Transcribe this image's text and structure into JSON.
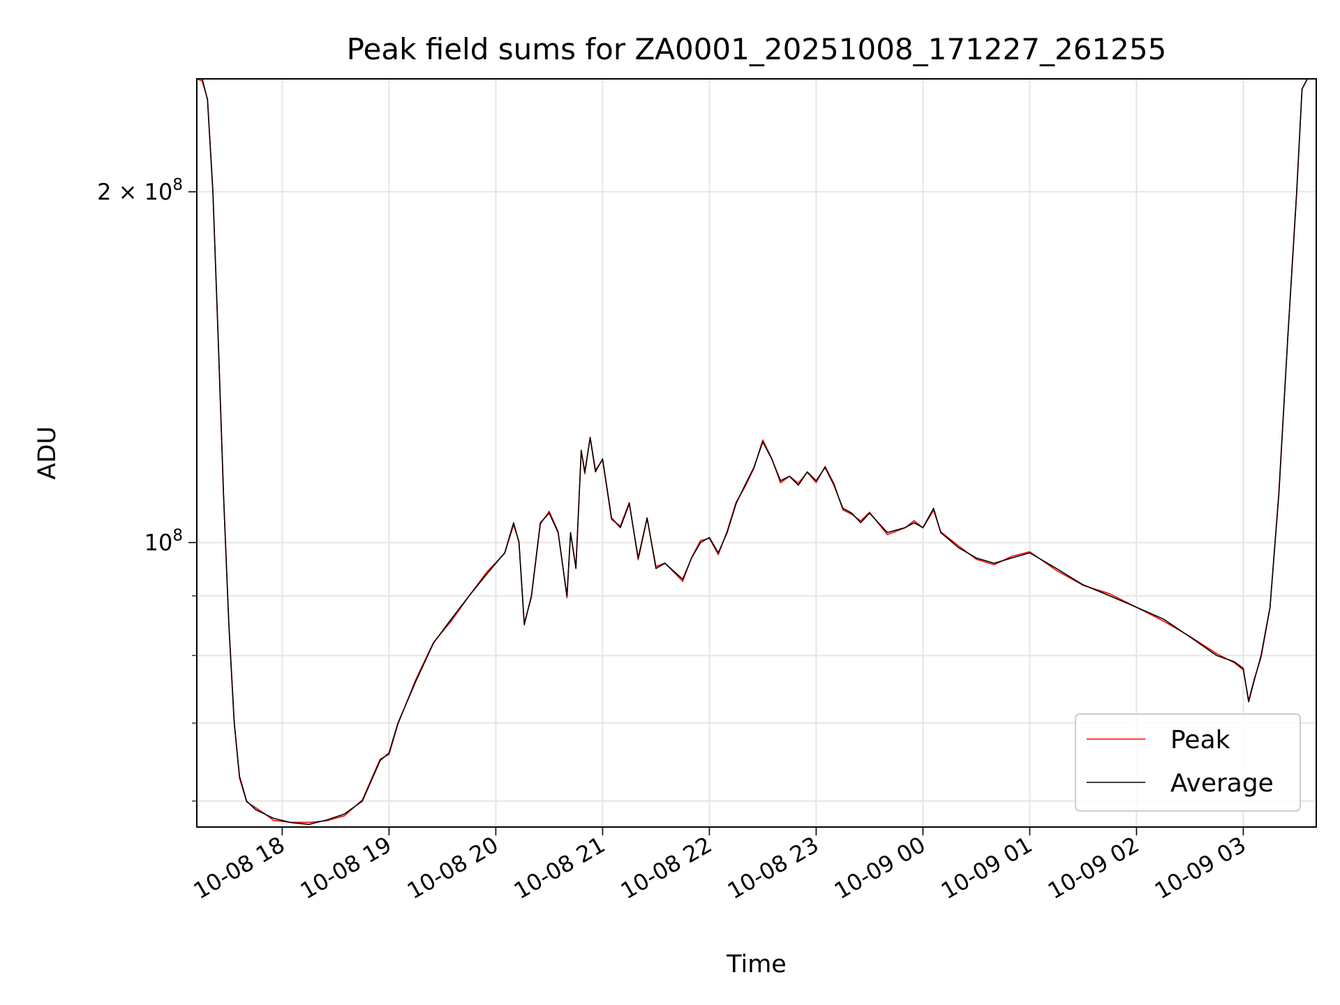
{
  "chart_data": {
    "type": "line",
    "title": "Peak field sums for ZA0001_20251008_171227_261255",
    "xlabel": "Time",
    "ylabel": "ADU",
    "yscale": "log",
    "ylim": [
      57000000,
      250000000
    ],
    "xlim": [
      "2025-10-08 17:12",
      "2025-10-09 03:41"
    ],
    "grid": true,
    "legend": "bottom-right",
    "x_ticks": [
      {
        "t": "2025-10-08 18:00",
        "label": "10-08 18"
      },
      {
        "t": "2025-10-08 19:00",
        "label": "10-08 19"
      },
      {
        "t": "2025-10-08 20:00",
        "label": "10-08 20"
      },
      {
        "t": "2025-10-08 21:00",
        "label": "10-08 21"
      },
      {
        "t": "2025-10-08 22:00",
        "label": "10-08 22"
      },
      {
        "t": "2025-10-08 23:00",
        "label": "10-08 23"
      },
      {
        "t": "2025-10-09 00:00",
        "label": "10-09 00"
      },
      {
        "t": "2025-10-09 01:00",
        "label": "10-09 01"
      },
      {
        "t": "2025-10-09 02:00",
        "label": "10-09 02"
      },
      {
        "t": "2025-10-09 03:00",
        "label": "10-09 03"
      }
    ],
    "y_major_ticks": [
      {
        "v": 100000000,
        "base": "10",
        "exp": "8"
      },
      {
        "v": 200000000,
        "base": "2 × 10",
        "exp": "8"
      }
    ],
    "y_minor_ticks": [
      60000000,
      70000000,
      80000000,
      90000000
    ],
    "series": [
      {
        "name": "Peak",
        "color": "#ff0000"
      },
      {
        "name": "Average",
        "color": "#000000"
      }
    ],
    "x": [
      "2025-10-08 17:12",
      "2025-10-08 17:15",
      "2025-10-08 17:18",
      "2025-10-08 17:21",
      "2025-10-08 17:24",
      "2025-10-08 17:27",
      "2025-10-08 17:30",
      "2025-10-08 17:33",
      "2025-10-08 17:36",
      "2025-10-08 17:40",
      "2025-10-08 17:45",
      "2025-10-08 17:50",
      "2025-10-08 17:55",
      "2025-10-08 18:05",
      "2025-10-08 18:15",
      "2025-10-08 18:25",
      "2025-10-08 18:35",
      "2025-10-08 18:45",
      "2025-10-08 18:55",
      "2025-10-08 19:00",
      "2025-10-08 19:05",
      "2025-10-08 19:15",
      "2025-10-08 19:25",
      "2025-10-08 19:35",
      "2025-10-08 19:45",
      "2025-10-08 19:55",
      "2025-10-08 20:05",
      "2025-10-08 20:10",
      "2025-10-08 20:13",
      "2025-10-08 20:16",
      "2025-10-08 20:20",
      "2025-10-08 20:25",
      "2025-10-08 20:30",
      "2025-10-08 20:35",
      "2025-10-08 20:40",
      "2025-10-08 20:42",
      "2025-10-08 20:45",
      "2025-10-08 20:48",
      "2025-10-08 20:50",
      "2025-10-08 20:53",
      "2025-10-08 20:56",
      "2025-10-08 21:00",
      "2025-10-08 21:05",
      "2025-10-08 21:10",
      "2025-10-08 21:15",
      "2025-10-08 21:20",
      "2025-10-08 21:25",
      "2025-10-08 21:30",
      "2025-10-08 21:35",
      "2025-10-08 21:45",
      "2025-10-08 21:50",
      "2025-10-08 21:55",
      "2025-10-08 22:00",
      "2025-10-08 22:05",
      "2025-10-08 22:10",
      "2025-10-08 22:15",
      "2025-10-08 22:20",
      "2025-10-08 22:25",
      "2025-10-08 22:30",
      "2025-10-08 22:35",
      "2025-10-08 22:40",
      "2025-10-08 22:45",
      "2025-10-08 22:50",
      "2025-10-08 22:55",
      "2025-10-08 23:00",
      "2025-10-08 23:05",
      "2025-10-08 23:10",
      "2025-10-08 23:15",
      "2025-10-08 23:20",
      "2025-10-08 23:25",
      "2025-10-08 23:30",
      "2025-10-08 23:40",
      "2025-10-08 23:50",
      "2025-10-08 23:55",
      "2025-10-09 00:00",
      "2025-10-09 00:06",
      "2025-10-09 00:10",
      "2025-10-09 00:20",
      "2025-10-09 00:30",
      "2025-10-09 00:40",
      "2025-10-09 00:50",
      "2025-10-09 01:00",
      "2025-10-09 01:15",
      "2025-10-09 01:30",
      "2025-10-09 01:45",
      "2025-10-09 02:00",
      "2025-10-09 02:15",
      "2025-10-09 02:30",
      "2025-10-09 02:45",
      "2025-10-09 02:55",
      "2025-10-09 03:00",
      "2025-10-09 03:03",
      "2025-10-09 03:06",
      "2025-10-09 03:10",
      "2025-10-09 03:15",
      "2025-10-09 03:20",
      "2025-10-09 03:25",
      "2025-10-09 03:30",
      "2025-10-09 03:33",
      "2025-10-09 03:36",
      "2025-10-09 03:41"
    ],
    "values": [
      250000000,
      250000000,
      240000000,
      200000000,
      150000000,
      110000000,
      85000000,
      70000000,
      63000000,
      60000000,
      59000000,
      58500000,
      58000000,
      57500000,
      57300000,
      57800000,
      58500000,
      60000000,
      65000000,
      66000000,
      70000000,
      76000000,
      82000000,
      86000000,
      90000000,
      94000000,
      98000000,
      104000000,
      100000000,
      85000000,
      90000000,
      104000000,
      106000000,
      102000000,
      90000000,
      102000000,
      95000000,
      120000000,
      115000000,
      123000000,
      115000000,
      118000000,
      105000000,
      103000000,
      108000000,
      97000000,
      105000000,
      95000000,
      96000000,
      93000000,
      97000000,
      100000000,
      101000000,
      98000000,
      102000000,
      108000000,
      112000000,
      116000000,
      122000000,
      118000000,
      113000000,
      114000000,
      112000000,
      115000000,
      113000000,
      116000000,
      112000000,
      107000000,
      106000000,
      104000000,
      106000000,
      102000000,
      103000000,
      104000000,
      103000000,
      107000000,
      102000000,
      99000000,
      97000000,
      96000000,
      97000000,
      98000000,
      95000000,
      92000000,
      90000000,
      88000000,
      86000000,
      83000000,
      80000000,
      79000000,
      78000000,
      73000000,
      76000000,
      80000000,
      88000000,
      110000000,
      150000000,
      200000000,
      245000000,
      250000000,
      250000000
    ]
  }
}
